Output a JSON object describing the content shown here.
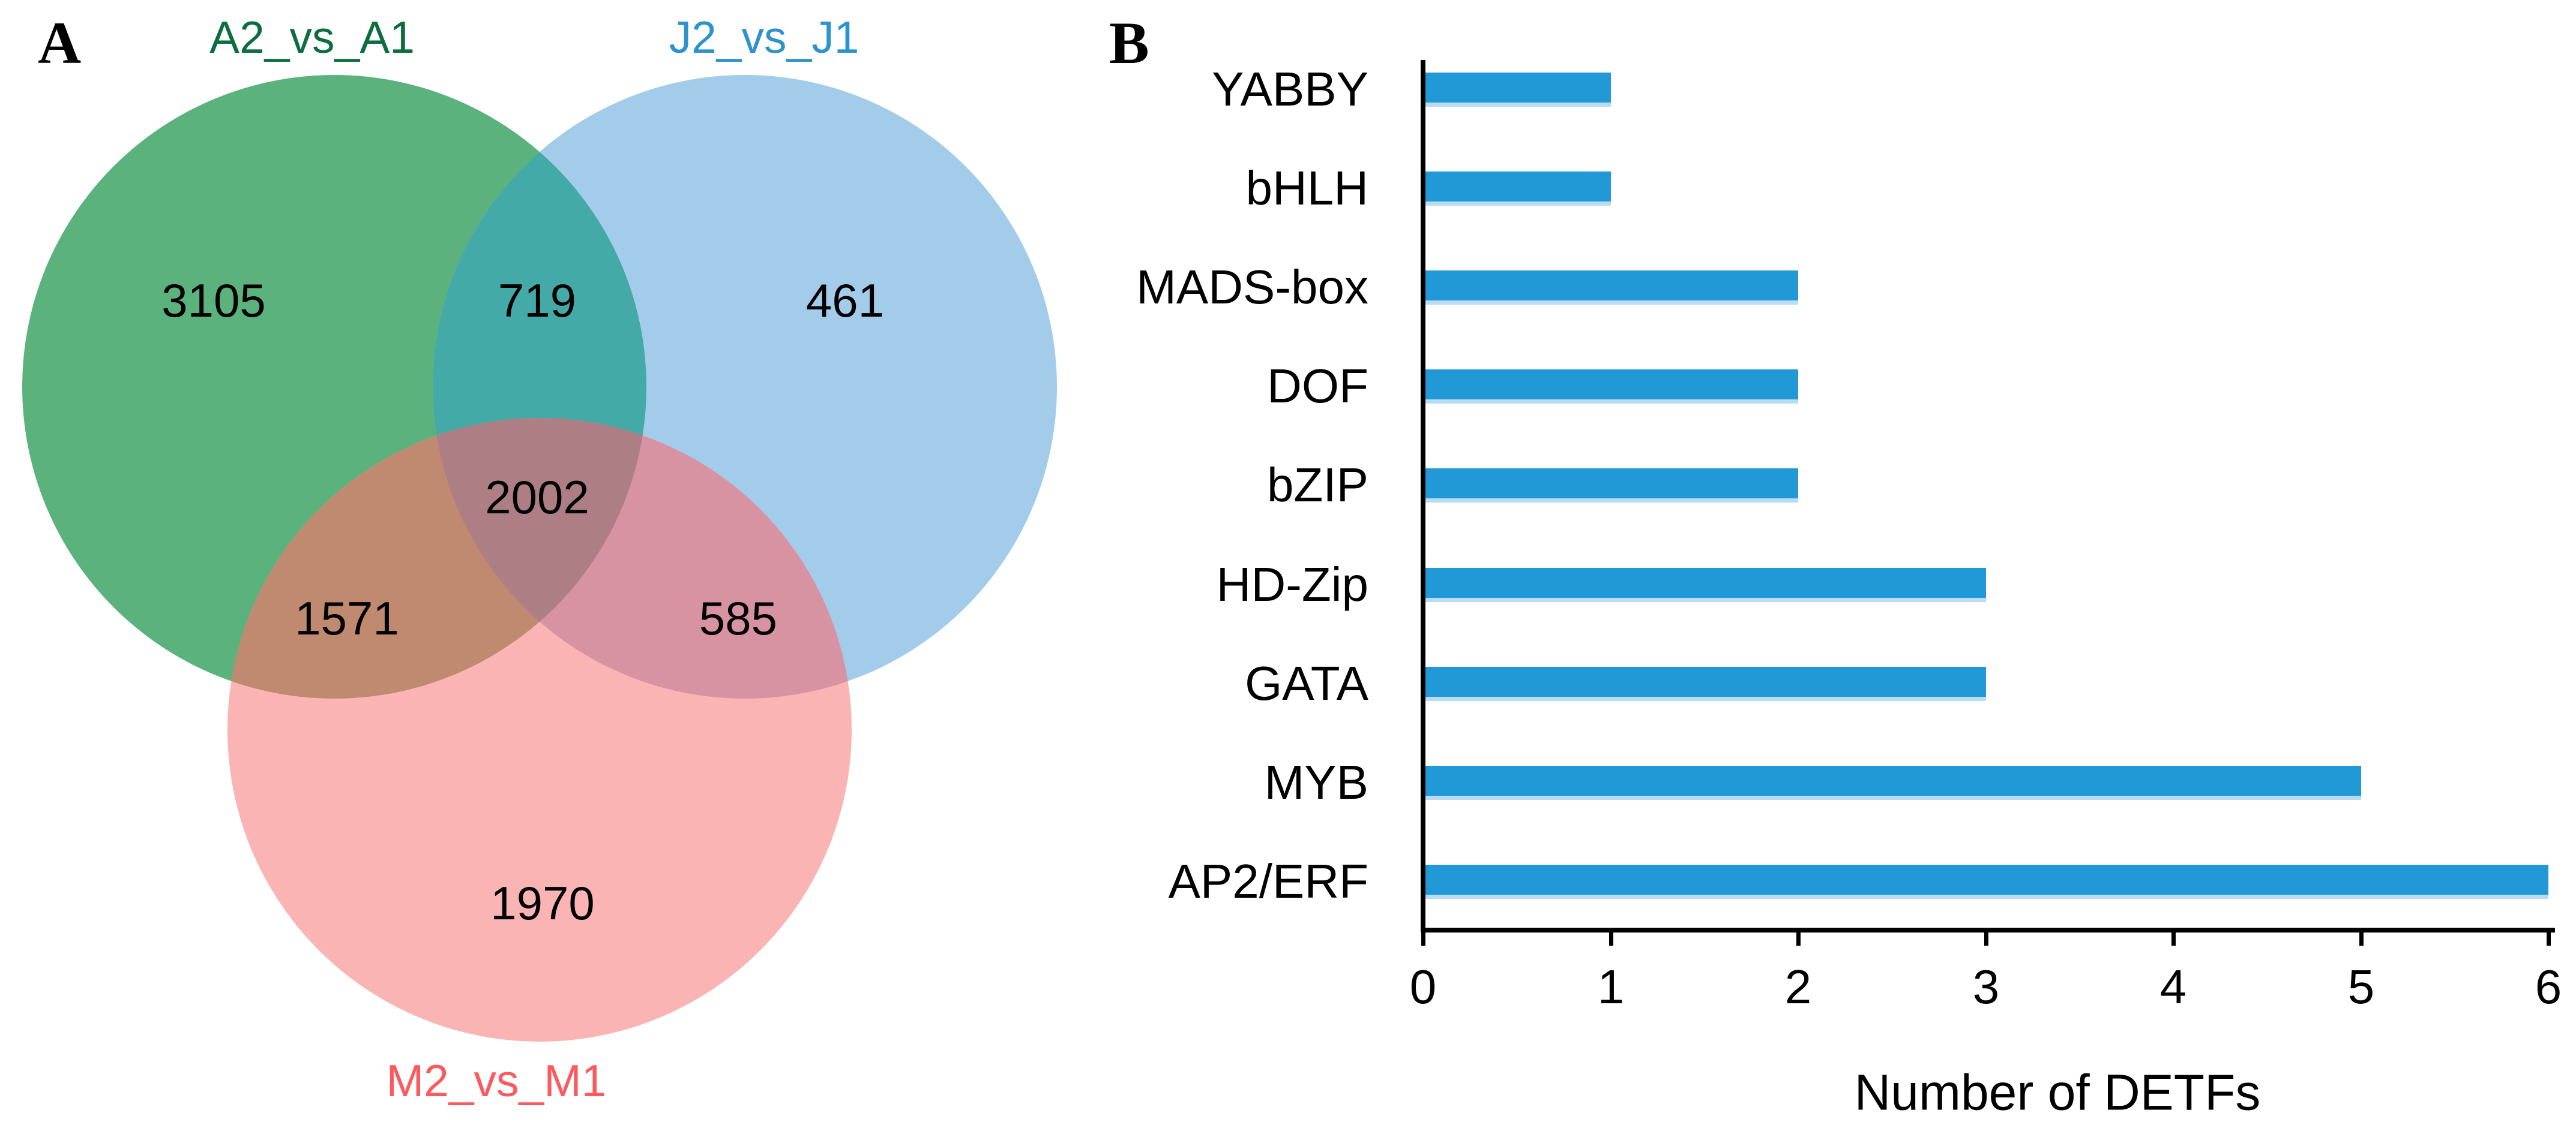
{
  "panels": {
    "a": "A",
    "b": "B"
  },
  "venn": {
    "sets": [
      {
        "label": "A2_vs_A1",
        "color": "#0c6e3f"
      },
      {
        "label": "J2_vs_J1",
        "color": "#2e93cc"
      },
      {
        "label": "M2_vs_M1",
        "color": "#fc5a5f"
      }
    ],
    "region_colors": {
      "green_only": "#5cb27c",
      "blue_only": "#a3cbea",
      "pink_only": "#fbb4b4",
      "green_blue": "#43aaa8",
      "green_pink": "#c08a70",
      "blue_pink": "#d893a3",
      "center": "#ad7f85"
    }
  },
  "chart_data": [
    {
      "type": "venn",
      "title": "",
      "sets": [
        "A2_vs_A1",
        "J2_vs_J1",
        "M2_vs_M1"
      ],
      "regions": [
        {
          "name": "A2_vs_A1_only",
          "value": 3105
        },
        {
          "name": "A2_vs_A1_and_J2_vs_J1",
          "value": 719
        },
        {
          "name": "J2_vs_J1_only",
          "value": 461
        },
        {
          "name": "A2_vs_A1_and_J2_vs_J1_and_M2_vs_M1",
          "value": 2002
        },
        {
          "name": "A2_vs_A1_and_M2_vs_M1",
          "value": 1571
        },
        {
          "name": "J2_vs_J1_and_M2_vs_M1",
          "value": 585
        },
        {
          "name": "M2_vs_M1_only",
          "value": 1970
        }
      ]
    },
    {
      "type": "bar",
      "orientation": "horizontal",
      "categories": [
        "YABBY",
        "bHLH",
        "MADS-box",
        "DOF",
        "bZIP",
        "HD-Zip",
        "GATA",
        "MYB",
        "AP2/ERF"
      ],
      "values": [
        1,
        1,
        2,
        2,
        2,
        3,
        3,
        5,
        6
      ],
      "xlabel": "Number of DETFs",
      "ylabel": "",
      "xticks": [
        0,
        1,
        2,
        3,
        4,
        5,
        6
      ],
      "xlim": [
        0,
        6
      ],
      "grid": false,
      "legend": false,
      "bar_color": "#2199d6",
      "axis_color": "#000000"
    }
  ]
}
